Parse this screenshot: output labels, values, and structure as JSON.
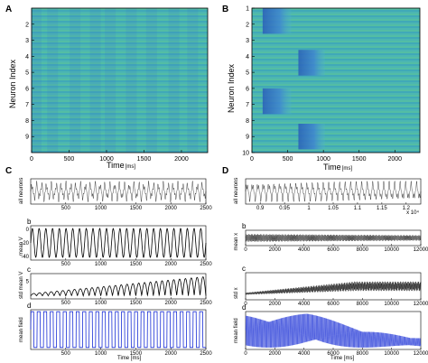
{
  "panel_letters": {
    "A": "A",
    "B": "B",
    "C": "C",
    "D": "D"
  },
  "colors": {
    "teal_base": "#46b6b0",
    "blue_band": "#2c6fc3",
    "trace_black": "#000000",
    "trace_blue": "#1a2fd6",
    "bg": "#ffffff"
  },
  "chart_data": [
    {
      "id": "A",
      "type": "heatmap",
      "xlabel": "Time",
      "xunit": "[ms]",
      "ylabel": "Neuron Index",
      "xticks": [
        "0",
        "500",
        "1000",
        "1500",
        "2000"
      ],
      "xlim": [
        0,
        2350
      ],
      "yticks": [
        "2",
        "3",
        "4",
        "5",
        "6",
        "7",
        "8",
        "9"
      ],
      "ylim": [
        1,
        10
      ],
      "description_values": {
        "vertical_band_ms": [
          60,
          280,
          580,
          850,
          1050,
          1330,
          1600,
          1900,
          2150
        ]
      }
    },
    {
      "id": "B",
      "type": "heatmap",
      "xlabel": "Time",
      "xunit": "[ms]",
      "ylabel": "Neuron Index",
      "xticks": [
        "0",
        "500",
        "1000",
        "1500",
        "2000"
      ],
      "xlim": [
        0,
        2350
      ],
      "yticks": [
        "1",
        "2",
        "3",
        "4",
        "5",
        "6",
        "7",
        "8",
        "9",
        "10"
      ],
      "ylim": [
        1,
        10
      ],
      "blocks": [
        {
          "x": [
            150,
            550
          ],
          "y": [
            1.0,
            2.6
          ]
        },
        {
          "x": [
            650,
            1020
          ],
          "y": [
            3.6,
            5.2
          ]
        },
        {
          "x": [
            150,
            550
          ],
          "y": [
            6.0,
            7.6
          ]
        },
        {
          "x": [
            650,
            1020
          ],
          "y": [
            8.2,
            9.8
          ]
        }
      ]
    },
    {
      "id": "C",
      "type": "line",
      "xlabel": "Time [ms]",
      "subplots": [
        {
          "label": "",
          "ylabel": "all neurons",
          "xlim": [
            0,
            2500
          ],
          "xticks": [
            "500",
            "1000",
            "1500",
            "2000",
            "2500"
          ],
          "yticks": [],
          "cycles": 36,
          "color": "#000000"
        },
        {
          "label": "b",
          "ylabel": "mean V",
          "xlim": [
            0,
            2500
          ],
          "xticks": [
            "500",
            "1000",
            "1500",
            "2000",
            "2500"
          ],
          "yticks": [
            "0",
            "-20",
            "-40"
          ],
          "ylim": [
            -45,
            5
          ],
          "cycles": 26,
          "color": "#000000"
        },
        {
          "label": "c",
          "ylabel": "std mean V",
          "xlim": [
            0,
            2500
          ],
          "xticks": [
            "500",
            "1000",
            "1500",
            "2000",
            "2500"
          ],
          "yticks": [
            "5"
          ],
          "cycles": 30,
          "color": "#000000"
        },
        {
          "label": "d",
          "ylabel": "mean field",
          "xlim": [
            0,
            2500
          ],
          "xticks": [
            "500",
            "1000",
            "1500",
            "2000",
            "2500"
          ],
          "yticks": [],
          "cycles": 27,
          "color": "#1a2fd6"
        }
      ]
    },
    {
      "id": "D",
      "type": "line",
      "xlabel": "Time [ms]",
      "subplots": [
        {
          "label": "",
          "ylabel": "all neurons",
          "xlim": [
            0.87,
            1.23
          ],
          "xticks": [
            "0.9",
            "0.95",
            "1",
            "1.05",
            "1.1",
            "1.15",
            "1.2"
          ],
          "xmultiplier": "x 10⁴",
          "cycles": 32,
          "color": "#000000"
        },
        {
          "label": "b",
          "ylabel": "mean x",
          "xlim": [
            0,
            12000
          ],
          "xticks": [
            "0",
            "2000",
            "4000",
            "6000",
            "8000",
            "10000",
            "12000"
          ],
          "color": "#000000"
        },
        {
          "label": "c",
          "ylabel": "std x",
          "xlim": [
            0,
            12000
          ],
          "xticks": [
            "0",
            "2000",
            "4000",
            "6000",
            "8000",
            "10000",
            "12000"
          ],
          "color": "#000000"
        },
        {
          "label": "d",
          "ylabel": "mean field",
          "xlim": [
            0,
            12000
          ],
          "xticks": [
            "0",
            "2000",
            "4000",
            "6000",
            "8000",
            "10000",
            "12000"
          ],
          "color": "#1a2fd6"
        }
      ]
    }
  ]
}
